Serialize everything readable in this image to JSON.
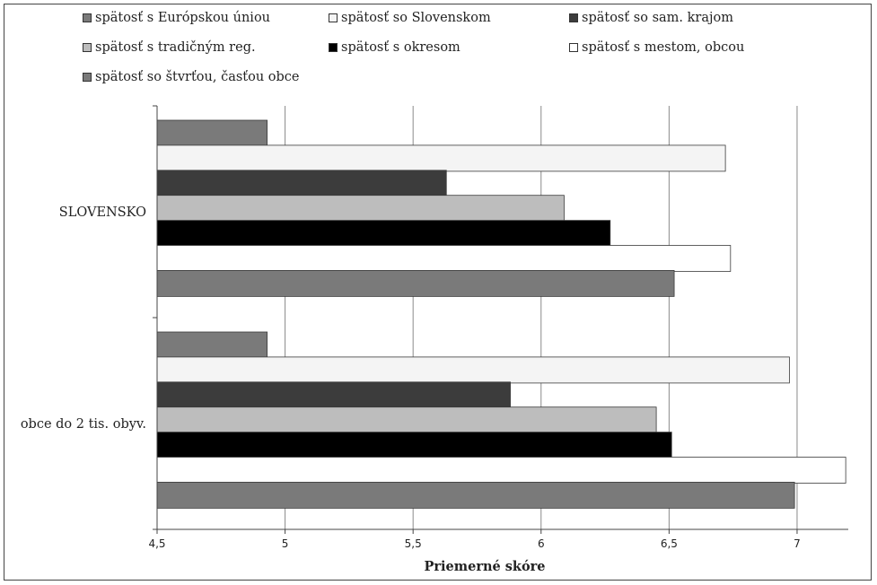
{
  "chart_data": {
    "type": "bar",
    "orientation": "horizontal",
    "xlabel": "Priemerné skóre",
    "xlim": [
      4.5,
      7.2
    ],
    "xticks": [
      "4,5",
      "5",
      "5,5",
      "6",
      "6,5",
      "7"
    ],
    "xtick_values": [
      4.5,
      5,
      5.5,
      6,
      6.5,
      7
    ],
    "grid": "vertical",
    "legend_position": "top",
    "categories": [
      "SLOVENSKO",
      "obce do 2 tis. obyv."
    ],
    "series": [
      {
        "name": "spätosť s Európskou úniou",
        "color": "#7a7a7a",
        "values": [
          4.93,
          4.93
        ]
      },
      {
        "name": "spätosť so Slovenskom",
        "color": "#f4f4f4",
        "values": [
          6.72,
          6.97
        ]
      },
      {
        "name": "spätosť so sam. krajom",
        "color": "#3c3c3c",
        "values": [
          5.63,
          5.88
        ]
      },
      {
        "name": "spätosť s tradičným reg.",
        "color": "#bdbdbd",
        "values": [
          6.09,
          6.45
        ]
      },
      {
        "name": "spätosť s okresom",
        "color": "#000000",
        "values": [
          6.27,
          6.51
        ]
      },
      {
        "name": "spätosť s mestom, obcou",
        "color": "#ffffff",
        "values": [
          6.74,
          7.19
        ]
      },
      {
        "name": "spätosť so štvrťou, časťou obce",
        "color": "#7a7a7a",
        "values": [
          6.52,
          6.99
        ]
      }
    ]
  }
}
